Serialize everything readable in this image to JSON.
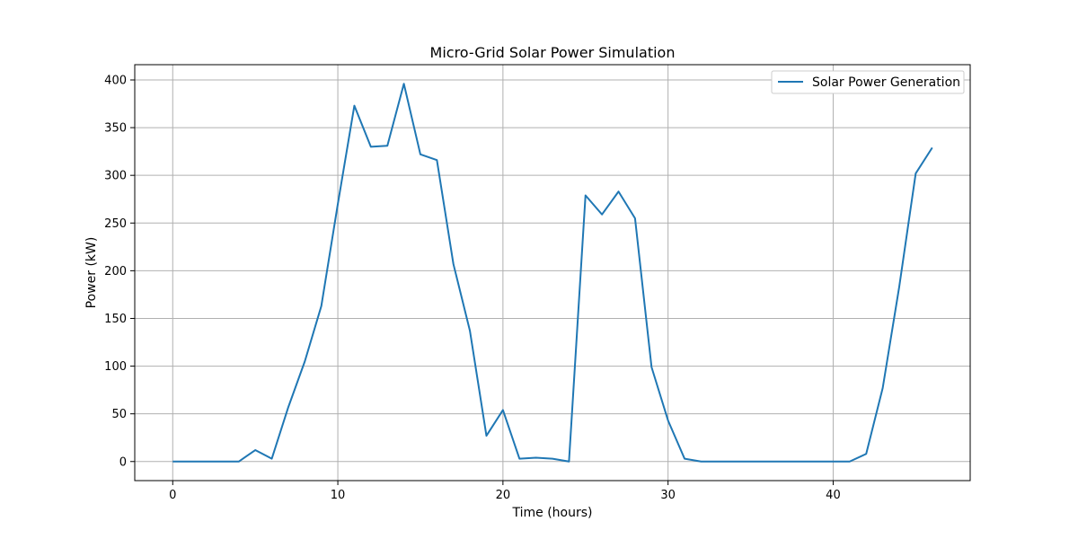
{
  "chart_data": {
    "type": "line",
    "title": "Micro-Grid Solar Power Simulation",
    "xlabel": "Time (hours)",
    "ylabel": "Power (kW)",
    "xlim": [
      -2.3,
      48.3
    ],
    "ylim": [
      -20,
      416
    ],
    "xticks": [
      0,
      10,
      20,
      30,
      40
    ],
    "yticks": [
      0,
      50,
      100,
      150,
      200,
      250,
      300,
      350,
      400
    ],
    "grid": true,
    "legend_position": "top-right",
    "series": [
      {
        "name": "Solar Power Generation",
        "color": "#1f77b4",
        "x": [
          0,
          1,
          2,
          3,
          4,
          5,
          6,
          7,
          8,
          9,
          10,
          11,
          12,
          13,
          14,
          15,
          16,
          17,
          18,
          19,
          20,
          21,
          22,
          23,
          24,
          25,
          26,
          27,
          28,
          29,
          30,
          31,
          32,
          33,
          34,
          35,
          36,
          37,
          38,
          39,
          40,
          41,
          42,
          43,
          44,
          45,
          46
        ],
        "y": [
          0,
          0,
          0,
          0,
          0,
          12,
          3,
          57,
          105,
          163,
          270,
          373,
          330,
          331,
          396,
          322,
          316,
          207,
          137,
          27,
          54,
          3,
          4,
          3,
          0,
          279,
          259,
          283,
          255,
          99,
          43,
          3,
          0,
          0,
          0,
          0,
          0,
          0,
          0,
          0,
          0,
          0,
          8,
          77,
          183,
          302,
          329
        ]
      }
    ]
  }
}
